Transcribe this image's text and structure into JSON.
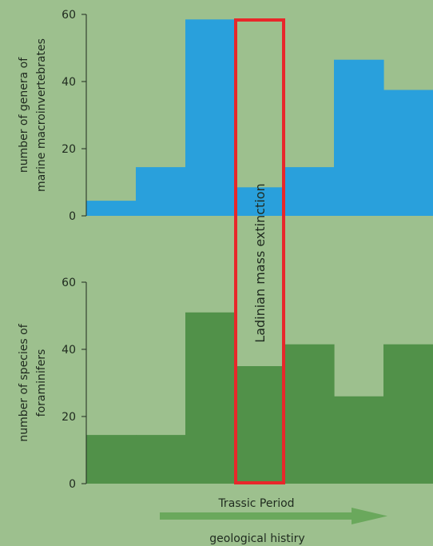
{
  "chart_data": [
    {
      "type": "bar",
      "ylabel_lines": [
        "number of genera of",
        "marine macroinvertebrates"
      ],
      "ylim": [
        0,
        60
      ],
      "yticks": [
        "0",
        "20",
        "40",
        "60"
      ],
      "values": [
        4.5,
        14.5,
        58.5,
        8.5,
        14.5,
        46.5,
        37.5
      ],
      "color": "#29a0dc"
    },
    {
      "type": "bar",
      "ylabel_lines": [
        "number of species of",
        "foraminifers"
      ],
      "ylim": [
        0,
        60
      ],
      "yticks": [
        "0",
        "20",
        "40",
        "60"
      ],
      "values": [
        14.5,
        14.5,
        51,
        35,
        41.5,
        26,
        41.5
      ],
      "color": "#519149"
    }
  ],
  "annotation": {
    "label": "Ladinian mass extinction",
    "bar_index": 3,
    "color": "#e8272a"
  },
  "footer": {
    "period_label": "Trassic Period",
    "axis_caption": "geological histiry",
    "arrow_color": "#6aa85c"
  },
  "background": "#9dc08e"
}
